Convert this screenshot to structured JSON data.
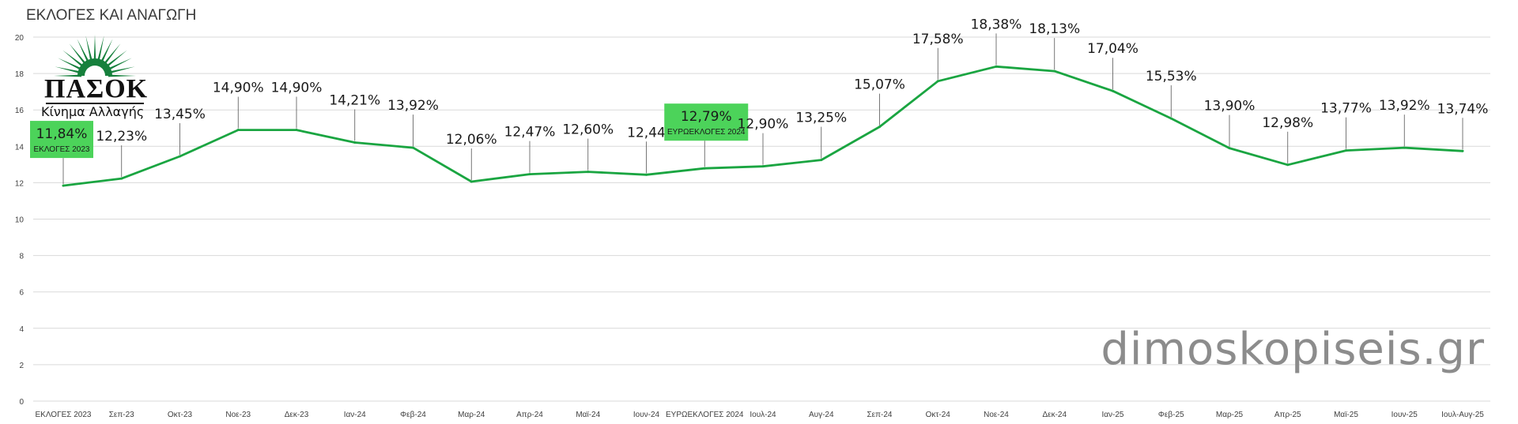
{
  "page": {
    "title": "ΕΚΛΟΓΕΣ ΚΑΙ ΑΝΑΓΩΓΗ",
    "watermark": "dimoskopiseis.gr"
  },
  "logo": {
    "name": "ΠΑΣΟΚ",
    "tagline": "Κίνημα Αλλαγής",
    "color": "#16803c"
  },
  "colors": {
    "line": "#1aa541",
    "highlight_box": "#4cd35a",
    "grid": "#d9d9d9",
    "axis_text": "#404040",
    "label_text": "#1a1a1a"
  },
  "chart_data": {
    "type": "line",
    "title": "ΕΚΛΟΓΕΣ ΚΑΙ ΑΝΑΓΩΓΗ",
    "xlabel": "",
    "ylabel": "",
    "ylim": [
      0,
      20
    ],
    "yticks": [
      0,
      2,
      4,
      6,
      8,
      10,
      12,
      14,
      16,
      18,
      20
    ],
    "grid": true,
    "categories": [
      "ΕΚΛΟΓΕΣ 2023",
      "Σεπ-23",
      "Οκτ-23",
      "Νοε-23",
      "Δεκ-23",
      "Ιαν-24",
      "Φεβ-24",
      "Μαρ-24",
      "Απρ-24",
      "Μαϊ-24",
      "Ιουν-24",
      "ΕΥΡΩΕΚΛΟΓΕΣ 2024",
      "Ιουλ-24",
      "Αυγ-24",
      "Σεπ-24",
      "Οκτ-24",
      "Νοε-24",
      "Δεκ-24",
      "Ιαν-25",
      "Φεβ-25",
      "Μαρ-25",
      "Απρ-25",
      "Μαϊ-25",
      "Ιουν-25",
      "Ιουλ-Αυγ-25"
    ],
    "series": [
      {
        "values": [
          11.84,
          12.23,
          13.45,
          14.9,
          14.9,
          14.21,
          13.92,
          12.06,
          12.47,
          12.6,
          12.44,
          12.79,
          12.9,
          13.25,
          15.07,
          17.58,
          18.38,
          18.13,
          17.04,
          15.53,
          13.9,
          12.98,
          13.77,
          13.92,
          13.74
        ],
        "labels": [
          "11,84%",
          "12,23%",
          "13,45%",
          "14,90%",
          "14,90%",
          "14,21%",
          "13,92%",
          "12,06%",
          "12,47%",
          "12,60%",
          "12,44",
          "12,79%",
          "12,90%",
          "13,25%",
          "15,07%",
          "17,58%",
          "18,38%",
          "18,13%",
          "17,04%",
          "15,53%",
          "13,90%",
          "12,98%",
          "13,77%",
          "13,92%",
          "13,74%"
        ]
      }
    ],
    "annotations": [
      {
        "index": 0,
        "value_label": "11,84%",
        "caption": "ΕΚΛΟΓΕΣ 2023"
      },
      {
        "index": 11,
        "value_label": "12,79%",
        "caption": "ΕΥΡΩΕΚΛΟΓΕΣ 2024"
      }
    ]
  }
}
